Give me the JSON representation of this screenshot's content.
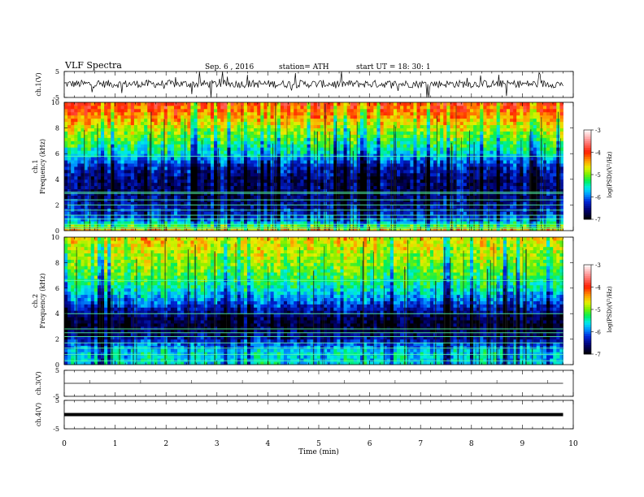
{
  "header": {
    "title": "VLF  Spectra",
    "date": "Sep. 6  , 2016",
    "station": "station= ATH",
    "start": "start  UT  =    18: 30: 1"
  },
  "colorbar": {
    "label": "log(PSD)(V²/Hz)",
    "ticks": [
      -3,
      -4,
      -5,
      -6,
      -7
    ],
    "colors": [
      "#ffffff",
      "#ff0000",
      "#ff9900",
      "#ffff00",
      "#00ff33",
      "#00ffff",
      "#0066ff",
      "#000080",
      "#000000"
    ]
  },
  "chart_data": [
    {
      "type": "line",
      "panel": "ch.1",
      "ylabel": "ch.1(V)",
      "ylim": [
        -5,
        5
      ],
      "yticks": [
        "5",
        "-5"
      ],
      "description": "noisy waveform centered near 0 V with frequent spikes",
      "baseline": 0.2,
      "amplitude": 1.5
    },
    {
      "type": "heatmap",
      "panel": "ch.1",
      "ylabel": "ch.1\nFrequency  (kHz)",
      "ylim": [
        0,
        10
      ],
      "yticks": [
        "10",
        "8",
        "6",
        "4",
        "2",
        "0"
      ],
      "zlabel": "log(PSD)(V²/Hz)",
      "zlim": [
        -7,
        -3
      ],
      "profile_khz": [
        0,
        0.5,
        1,
        2,
        3,
        4,
        5,
        6,
        7,
        8,
        9,
        10
      ],
      "profile_logpsd": [
        -4.2,
        -5.4,
        -6.1,
        -6.5,
        -6.6,
        -6.6,
        -6.3,
        -5.6,
        -5.2,
        -4.8,
        -4.3,
        -4.0
      ],
      "tones_khz": [
        0.15,
        0.3,
        0.5,
        0.9,
        1.2,
        1.6,
        2.0,
        2.4,
        2.9,
        3.0,
        5.8
      ]
    },
    {
      "type": "heatmap",
      "panel": "ch.2",
      "ylabel": "ch.2\nFrequency  (kHz)",
      "ylim": [
        0,
        10
      ],
      "yticks": [
        "10",
        "8",
        "6",
        "4",
        "2",
        "0"
      ],
      "zlabel": "log(PSD)(V²/Hz)",
      "zlim": [
        -7,
        -3
      ],
      "profile_khz": [
        0,
        0.5,
        1,
        2,
        3,
        4,
        5,
        6,
        7,
        8,
        9,
        10
      ],
      "profile_logpsd": [
        -5.6,
        -5.7,
        -5.6,
        -6.4,
        -6.9,
        -6.6,
        -6.0,
        -5.5,
        -5.2,
        -5.0,
        -4.8,
        -4.6
      ],
      "tones_khz": [
        0.3,
        0.8,
        1.3,
        1.7,
        2.2,
        2.5,
        2.8,
        4.0,
        6.6
      ]
    },
    {
      "type": "line",
      "panel": "ch.3",
      "ylabel": "ch.3(V)",
      "ylim": [
        -5,
        5
      ],
      "yticks": [
        "5",
        "-5"
      ],
      "description": "flat trace near 0 V",
      "baseline": 0.0,
      "amplitude": 0.0
    },
    {
      "type": "line",
      "panel": "ch.4",
      "ylabel": "ch.4(V)",
      "ylim": [
        -5,
        5
      ],
      "yticks": [
        "5",
        "-5"
      ],
      "description": "thick flat trace near 0 V",
      "baseline": 0.0,
      "amplitude": 0.0
    }
  ],
  "xaxis": {
    "label": "Time  (min)",
    "ticks": [
      "0",
      "1",
      "2",
      "3",
      "4",
      "5",
      "6",
      "7",
      "8",
      "9",
      "10"
    ],
    "xlim": [
      0,
      10
    ],
    "data_end": 9.8
  }
}
